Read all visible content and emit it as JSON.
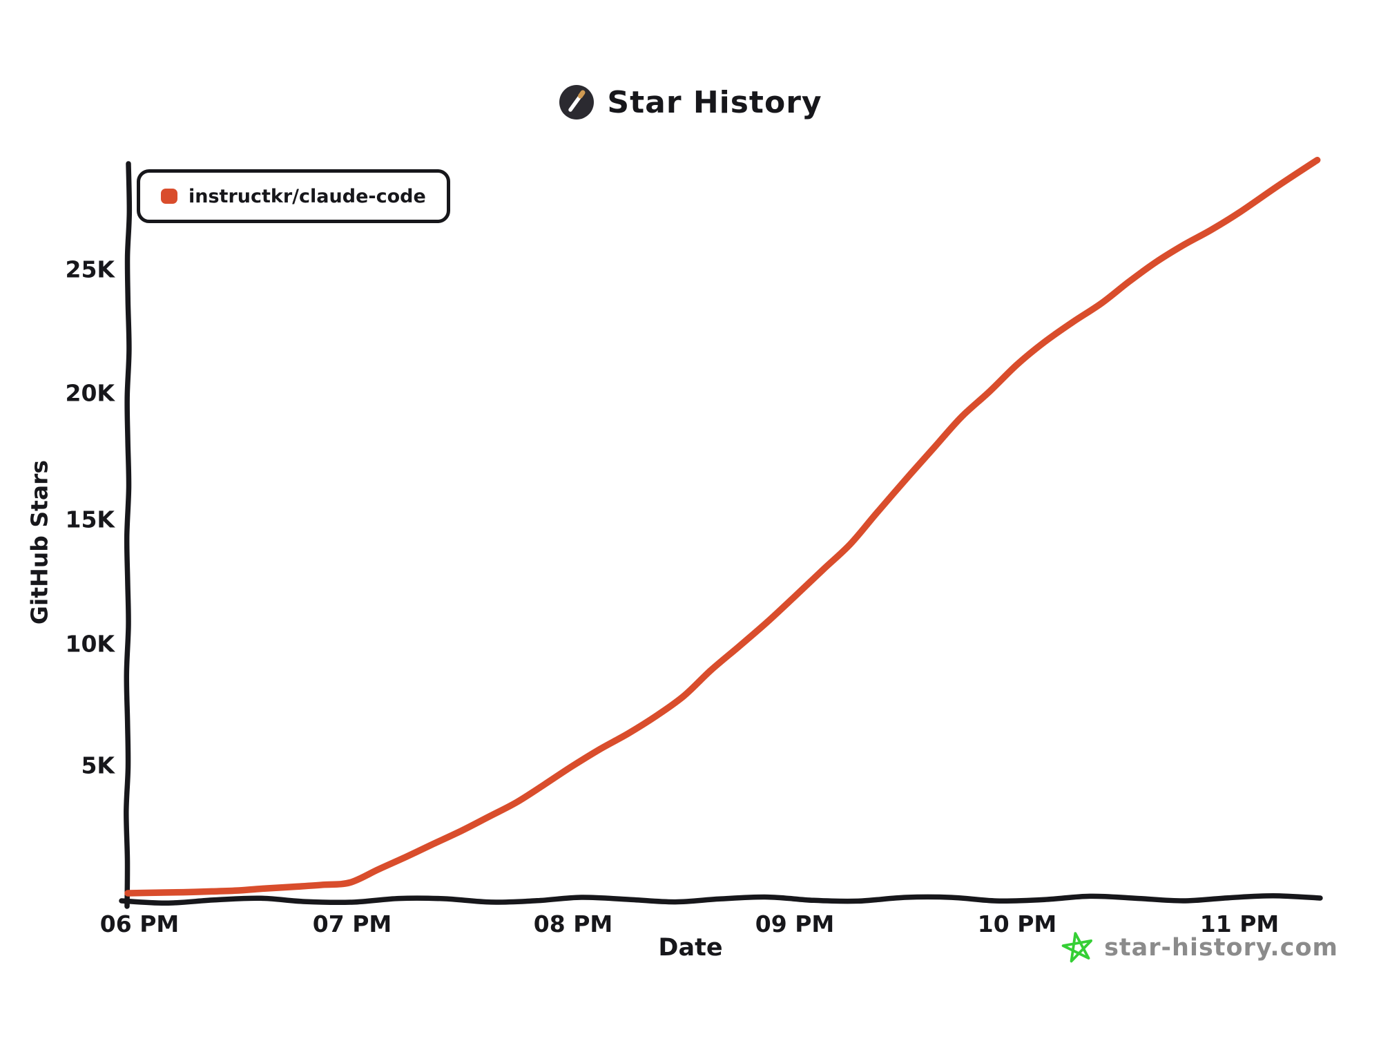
{
  "header": {
    "title": "Star History",
    "logo_icon": "pencil-in-dark-circle"
  },
  "legend": {
    "series_label": "instructkr/claude-code"
  },
  "watermark": {
    "text": "star-history.com",
    "icon": "green-doodle-star",
    "text_color": "#8b8b8b",
    "star_color": "#35cf35"
  },
  "colors": {
    "ink": "#17171b",
    "series": "#d94d2c",
    "background": "#ffffff",
    "logo_circle": "#2b2a30",
    "logo_pencil_tip": "#cf9a52"
  },
  "chart_data": {
    "type": "line",
    "title": "Star History",
    "xlabel": "Date",
    "ylabel": "GitHub Stars",
    "x_ticks": [
      "06 PM",
      "07 PM",
      "08 PM",
      "09 PM",
      "10 PM",
      "11 PM"
    ],
    "y_ticks": [
      "5K",
      "10K",
      "15K",
      "20K",
      "25K"
    ],
    "y_tick_values": [
      5000,
      10000,
      15000,
      20000,
      25000
    ],
    "ylim": [
      0,
      30000
    ],
    "grid": false,
    "legend_position": "top-left",
    "series": [
      {
        "name": "instructkr/claude-code",
        "color": "#d94d2c",
        "points": [
          {
            "time": "6:00 PM",
            "stars": 0
          },
          {
            "time": "6:15 PM",
            "stars": 40
          },
          {
            "time": "6:30 PM",
            "stars": 110
          },
          {
            "time": "6:45 PM",
            "stars": 260
          },
          {
            "time": "7:00 PM",
            "stars": 430
          },
          {
            "time": "7:15 PM",
            "stars": 1450
          },
          {
            "time": "7:30 PM",
            "stars": 2500
          },
          {
            "time": "7:45 PM",
            "stars": 3650
          },
          {
            "time": "8:00 PM",
            "stars": 5100
          },
          {
            "time": "8:15 PM",
            "stars": 6400
          },
          {
            "time": "8:30 PM",
            "stars": 7900
          },
          {
            "time": "8:45 PM",
            "stars": 9900
          },
          {
            "time": "9:00 PM",
            "stars": 11900
          },
          {
            "time": "9:15 PM",
            "stars": 14000
          },
          {
            "time": "9:30 PM",
            "stars": 16600
          },
          {
            "time": "9:45 PM",
            "stars": 19100
          },
          {
            "time": "10:00 PM",
            "stars": 21200
          },
          {
            "time": "10:15 PM",
            "stars": 22900
          },
          {
            "time": "10:30 PM",
            "stars": 24500
          },
          {
            "time": "10:45 PM",
            "stars": 26000
          },
          {
            "time": "11:00 PM",
            "stars": 27300
          },
          {
            "time": "11:21 PM",
            "stars": 29400
          }
        ]
      }
    ]
  }
}
